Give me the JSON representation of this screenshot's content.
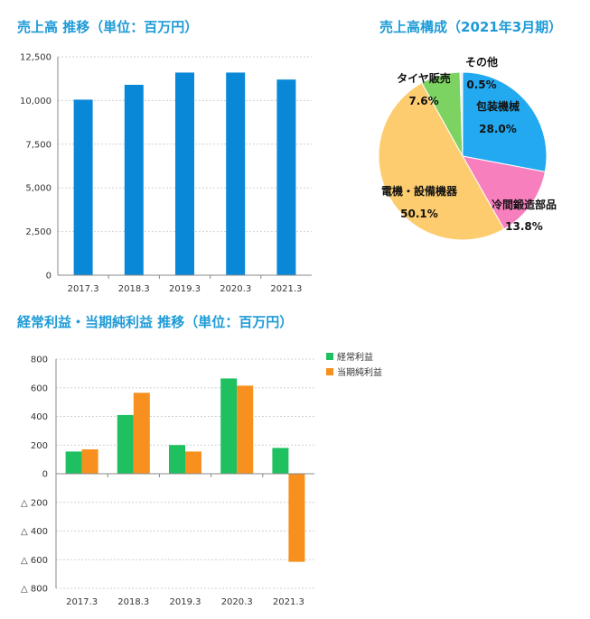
{
  "chart_data": [
    {
      "type": "bar",
      "title": "売上高 推移（単位：百万円）",
      "categories": [
        "2017.3",
        "2018.3",
        "2019.3",
        "2020.3",
        "2021.3"
      ],
      "values": [
        10050,
        10900,
        11600,
        11600,
        11200
      ],
      "ylim": [
        0,
        12500
      ],
      "yticks": [
        "0",
        "2,500",
        "5,000",
        "7,500",
        "10,000",
        "12,500"
      ],
      "ytick_values": [
        0,
        2500,
        5000,
        7500,
        10000,
        12500
      ],
      "grid": true,
      "color": "#0a88d8"
    },
    {
      "type": "pie",
      "title": "売上高構成（2021年3月期）",
      "slices": [
        {
          "name": "包装機械",
          "pct_label": "28.0%",
          "value": 28.0,
          "color": "#22a9f0"
        },
        {
          "name": "冷間鍛造部品",
          "pct_label": "13.8%",
          "value": 13.8,
          "color": "#f77fbe"
        },
        {
          "name": "電機・設備機器",
          "pct_label": "50.1%",
          "value": 50.1,
          "color": "#fdcc6e"
        },
        {
          "name": "タイヤ販売",
          "pct_label": "7.6%",
          "value": 7.6,
          "color": "#7dd361"
        },
        {
          "name": "その他",
          "pct_label": "0.5%",
          "value": 0.5,
          "color": "#f2f2f2"
        }
      ]
    },
    {
      "type": "bar",
      "title": "経常利益・当期純利益 推移（単位：百万円）",
      "categories": [
        "2017.3",
        "2018.3",
        "2019.3",
        "2020.3",
        "2021.3"
      ],
      "series": [
        {
          "name": "経常利益",
          "values": [
            155,
            410,
            200,
            665,
            180
          ],
          "color": "#1ec060"
        },
        {
          "name": "当期純利益",
          "values": [
            170,
            565,
            155,
            615,
            -615
          ],
          "color": "#f7901e"
        }
      ],
      "ylim": [
        -800,
        800
      ],
      "yticks": [
        "800",
        "600",
        "400",
        "200",
        "0",
        "△ 200",
        "△ 400",
        "△ 600",
        "△ 800"
      ],
      "ytick_values": [
        800,
        600,
        400,
        200,
        0,
        -200,
        -400,
        -600,
        -800
      ],
      "legend": "top-right",
      "grid": true
    }
  ]
}
